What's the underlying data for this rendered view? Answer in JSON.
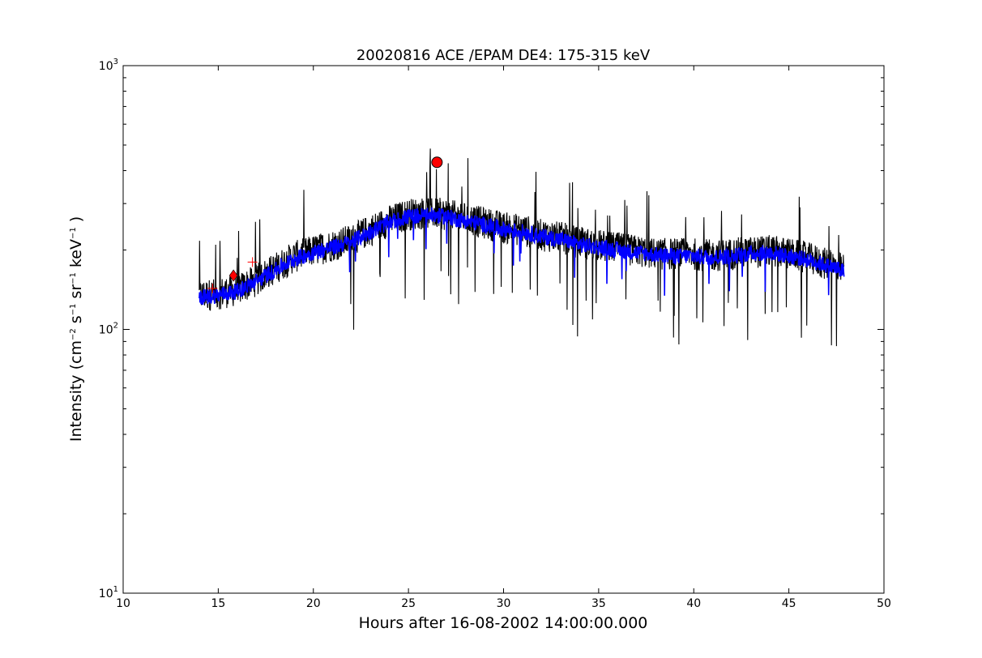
{
  "chart_data": {
    "type": "line",
    "title": "20020816 ACE /EPAM DE4: 175-315 keV",
    "xlabel": "Hours after 16-08-2002 14:00:00.000",
    "ylabel": "Intensity (cm−2 s−1 sr−1 keV−1 )",
    "ylabel_parts": {
      "prefix": "Intensity (cm",
      "exp1": "−2",
      "mid1": " s",
      "exp2": "−1",
      "mid2": " sr",
      "exp3": "−1",
      "mid3": " keV",
      "exp4": "−1",
      "suffix": " )"
    },
    "xlim": [
      10,
      50
    ],
    "ylim": [
      10,
      1000
    ],
    "yscale": "log",
    "grid": false,
    "x_ticks": [
      "10",
      "15",
      "20",
      "25",
      "30",
      "35",
      "40",
      "45",
      "50"
    ],
    "y_ticks": [
      {
        "base": "10",
        "exp": "1"
      },
      {
        "base": "10",
        "exp": "2"
      },
      {
        "base": "10",
        "exp": "3"
      }
    ],
    "series": [
      {
        "color": "#000000",
        "x": [
          14.0,
          15.0,
          16.0,
          17.0,
          18.0,
          19.0,
          20.0,
          21.0,
          22.0,
          23.0,
          24.0,
          25.0,
          26.0,
          27.0,
          28.0,
          29.0,
          30.0,
          31.0,
          32.0,
          33.0,
          34.0,
          35.0,
          36.0,
          37.0,
          38.0,
          39.0,
          40.0,
          41.0,
          42.0,
          43.0,
          44.0,
          45.0,
          46.0,
          47.0,
          47.9
        ],
        "y": [
          135,
          138,
          142,
          155,
          172,
          190,
          200,
          210,
          220,
          240,
          260,
          275,
          280,
          275,
          265,
          255,
          245,
          240,
          230,
          225,
          215,
          210,
          205,
          200,
          195,
          195,
          195,
          192,
          195,
          198,
          200,
          195,
          188,
          178,
          170
        ]
      },
      {
        "color": "#0000ff",
        "x": [
          14.0,
          15.0,
          16.0,
          17.0,
          18.0,
          19.0,
          20.0,
          21.0,
          22.0,
          23.0,
          24.0,
          25.0,
          26.0,
          27.0,
          28.0,
          29.0,
          30.0,
          31.0,
          32.0,
          33.0,
          34.0,
          35.0,
          36.0,
          37.0,
          38.0,
          39.0,
          40.0,
          41.0,
          42.0,
          43.0,
          44.0,
          45.0,
          46.0,
          47.0,
          47.9
        ],
        "y": [
          132,
          135,
          140,
          152,
          168,
          185,
          196,
          205,
          215,
          235,
          255,
          268,
          272,
          268,
          258,
          250,
          240,
          235,
          225,
          220,
          210,
          205,
          200,
          196,
          192,
          190,
          190,
          188,
          190,
          194,
          196,
          190,
          184,
          175,
          166
        ]
      }
    ],
    "markers": [
      {
        "shape": "circle",
        "x": 26.5,
        "y": 430,
        "color": "#ff0000"
      },
      {
        "shape": "diamond",
        "x": 15.8,
        "y": 160,
        "color": "#ff0000"
      },
      {
        "shape": "plus",
        "x": 14.7,
        "y": 143,
        "color": "#ff0000"
      },
      {
        "shape": "plus",
        "x": 16.8,
        "y": 180,
        "color": "#ff0000"
      }
    ]
  }
}
